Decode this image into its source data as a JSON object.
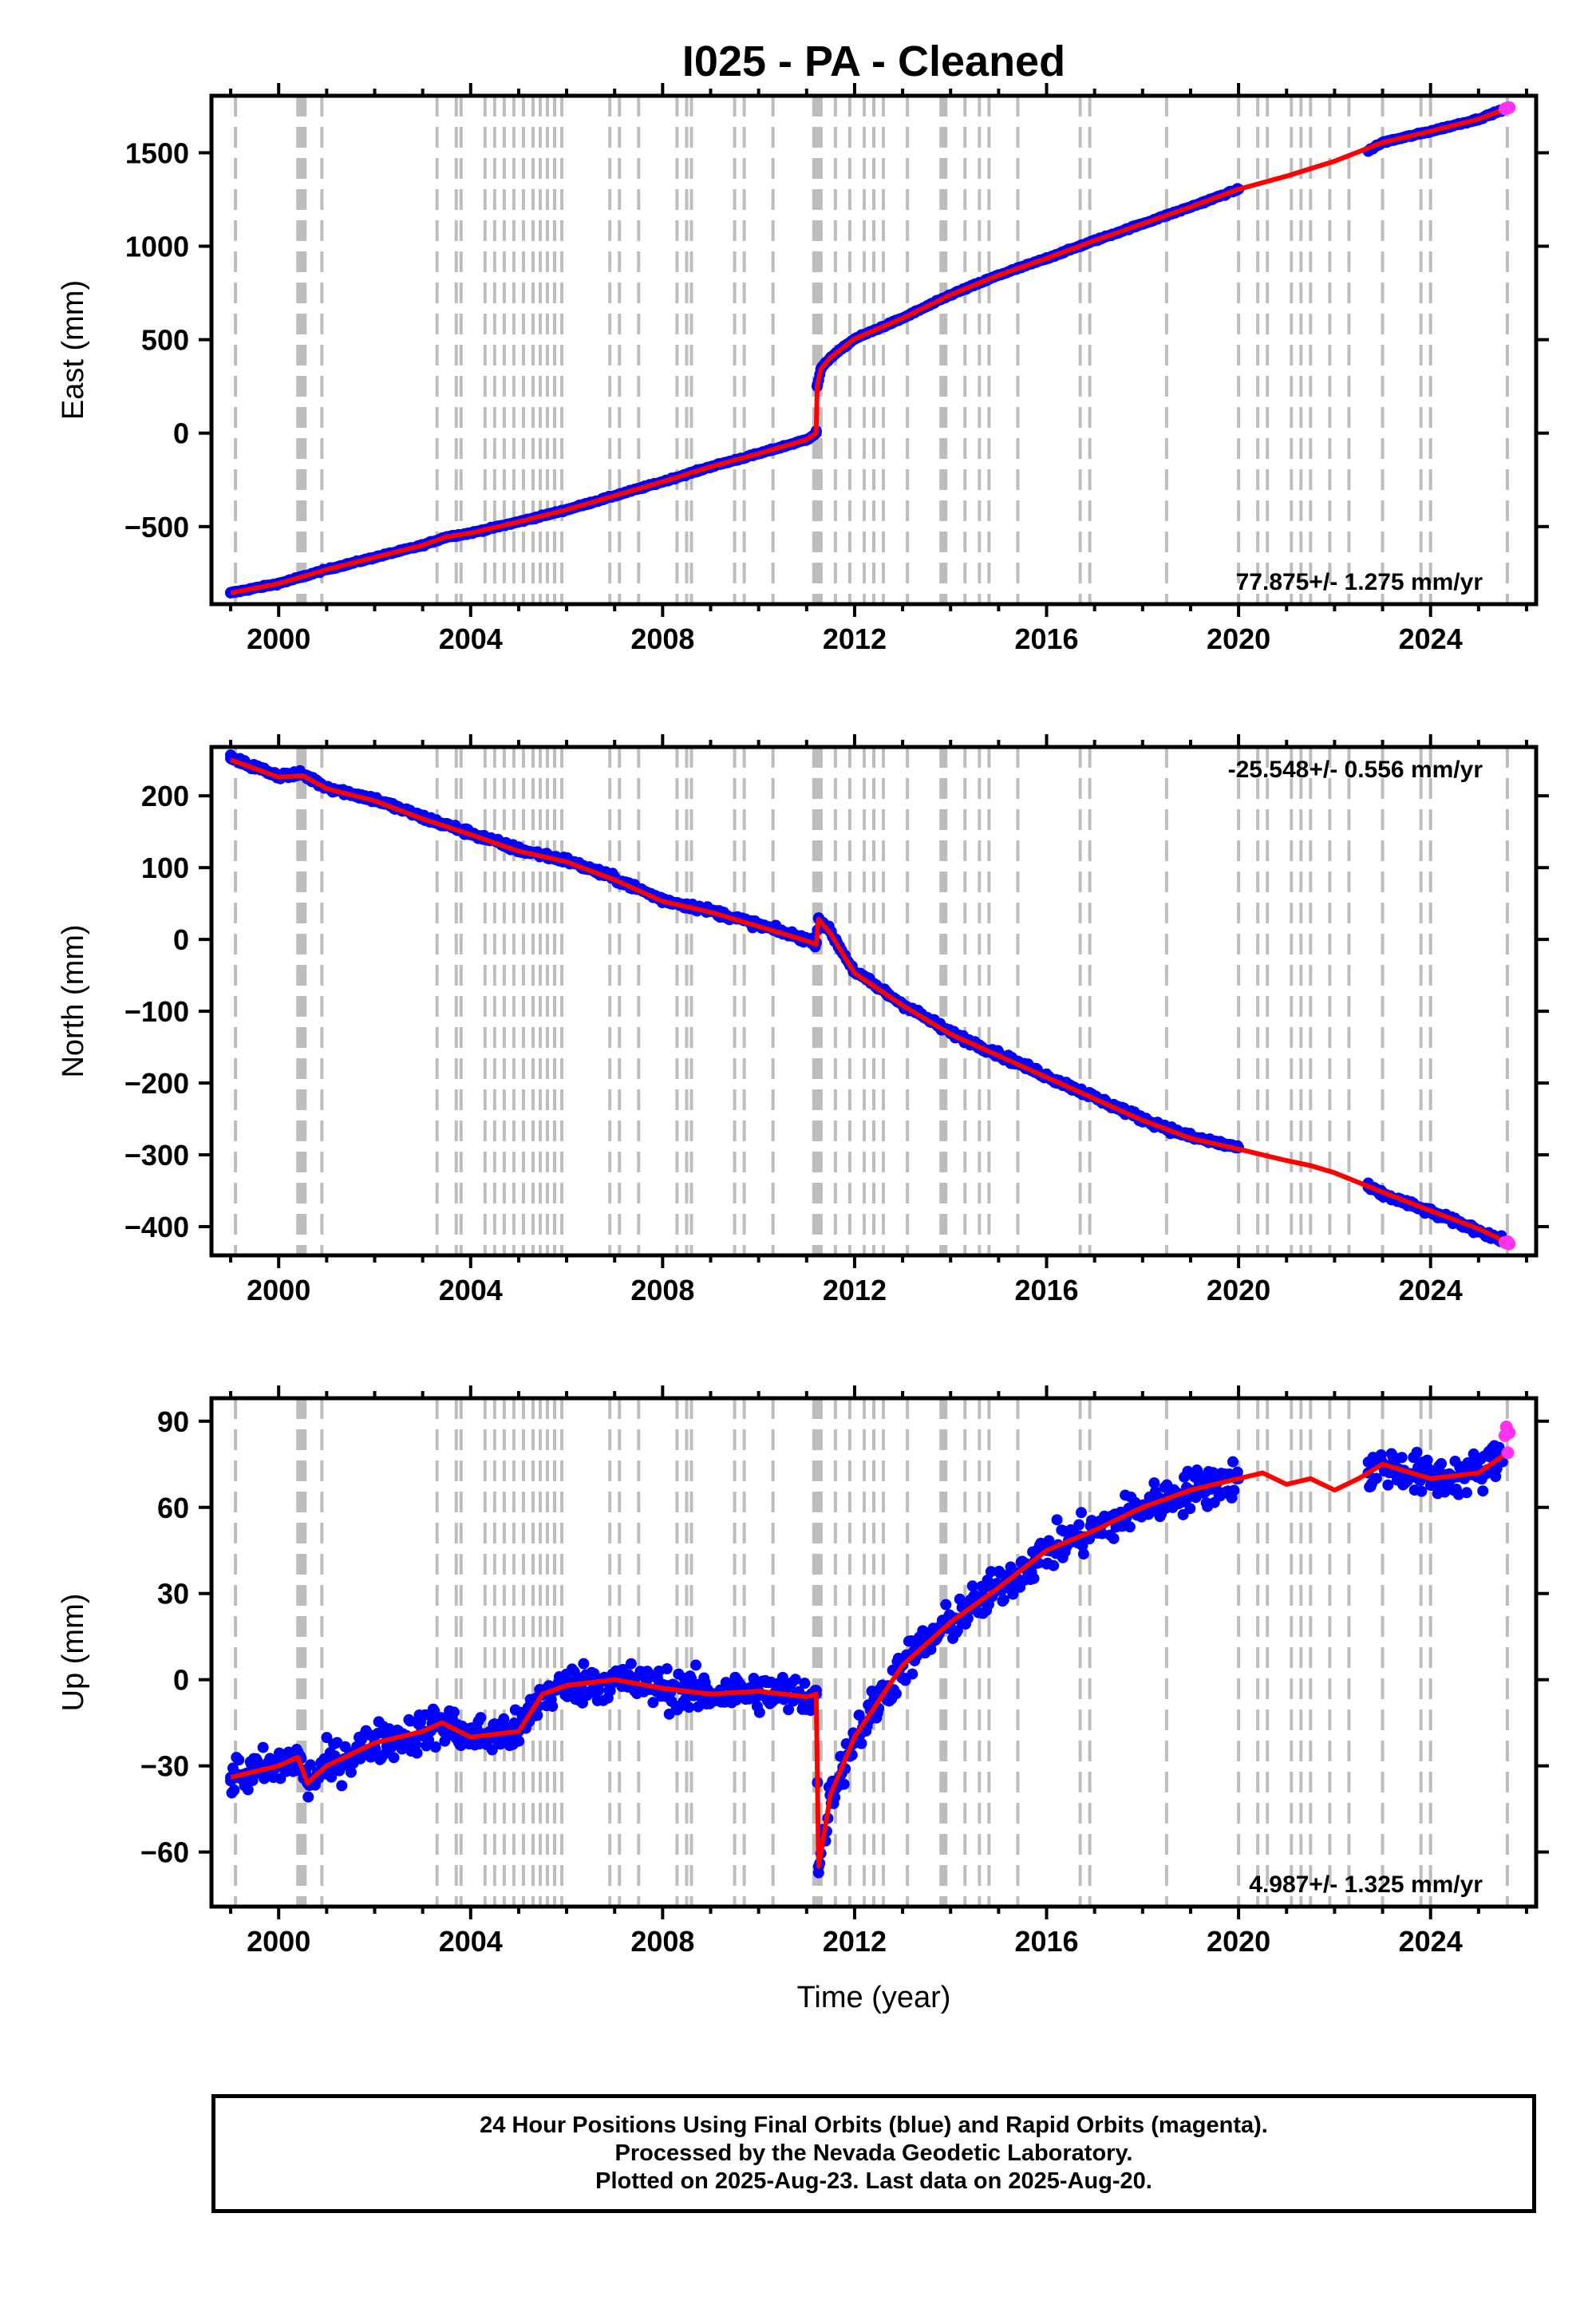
{
  "title": "I025  - PA - Cleaned",
  "colors": {
    "final_orbits": "#0000ff",
    "rapid_orbits": "#ff33ee",
    "model": "#ff0000",
    "offset_lines": "#bdbdbd",
    "axis": "#000000"
  },
  "chart_data": [
    {
      "type": "scatter",
      "panel": "east",
      "xlabel": "",
      "ylabel": "East (mm)",
      "xlim": [
        1998.6,
        2026.2
      ],
      "ylim": [
        -915,
        1805
      ],
      "xticks": [
        2000,
        2004,
        2008,
        2012,
        2016,
        2020,
        2024
      ],
      "yticks": [
        -500,
        0,
        500,
        1000,
        1500
      ],
      "ytick_labels": [
        "−500",
        "0",
        "500",
        "1000",
        "1500"
      ],
      "rate_label": "77.875+/- 1.275 mm/yr",
      "rate_label_position": "bottom-right",
      "grid": false,
      "series": [
        {
          "name": "Final Orbits",
          "color": "#0000ff",
          "x": [
            1999.0,
            2000.0,
            2001.0,
            2002.0,
            2003.0,
            2003.5,
            2004.0,
            2005.0,
            2006.0,
            2007.0,
            2008.0,
            2009.0,
            2010.0,
            2011.0,
            2011.2,
            2011.22,
            2011.3,
            2011.5,
            2012.0,
            2013.0,
            2014.0,
            2015.0,
            2016.0,
            2017.0,
            2018.0,
            2019.0,
            2020.0,
            2022.7,
            2023.0,
            2024.0,
            2025.0,
            2025.5
          ],
          "y": [
            -855,
            -805,
            -730,
            -665,
            -600,
            -555,
            -535,
            -475,
            -410,
            -335,
            -260,
            -180,
            -110,
            -35,
            0,
            250,
            345,
            405,
            505,
            615,
            740,
            845,
            935,
            1030,
            1120,
            1210,
            1305,
            1510,
            1555,
            1615,
            1680,
            1730
          ]
        },
        {
          "name": "Rapid Orbits",
          "color": "#ff33ee",
          "x": [
            2025.55,
            2025.58,
            2025.61,
            2025.64
          ],
          "y": [
            1735,
            1738,
            1740,
            1742
          ]
        },
        {
          "name": "Model",
          "color": "#ff0000",
          "x": [
            1999.0,
            2000.0,
            2001.0,
            2002.0,
            2003.0,
            2003.5,
            2004.0,
            2005.0,
            2006.0,
            2007.0,
            2008.0,
            2009.0,
            2010.0,
            2011.0,
            2011.2,
            2011.22,
            2011.3,
            2011.5,
            2012.0,
            2013.0,
            2014.0,
            2015.0,
            2016.0,
            2017.0,
            2018.0,
            2019.0,
            2020.0,
            2021.0,
            2022.0,
            2023.0,
            2024.0,
            2025.0,
            2025.6
          ],
          "y": [
            -855,
            -805,
            -730,
            -665,
            -600,
            -555,
            -535,
            -475,
            -410,
            -335,
            -260,
            -180,
            -110,
            -35,
            0,
            250,
            345,
            405,
            505,
            615,
            740,
            845,
            935,
            1030,
            1120,
            1210,
            1305,
            1375,
            1455,
            1555,
            1615,
            1680,
            1738
          ]
        }
      ]
    },
    {
      "type": "scatter",
      "panel": "north",
      "xlabel": "",
      "ylabel": "North (mm)",
      "xlim": [
        1998.6,
        2026.2
      ],
      "ylim": [
        -440,
        268
      ],
      "xticks": [
        2000,
        2004,
        2008,
        2012,
        2016,
        2020,
        2024
      ],
      "yticks": [
        -400,
        -300,
        -200,
        -100,
        0,
        100,
        200
      ],
      "ytick_labels": [
        "−400",
        "−300",
        "−200",
        "−100",
        "0",
        "100",
        "200"
      ],
      "rate_label": "-25.548+/- 0.556 mm/yr",
      "rate_label_position": "top-right",
      "grid": false,
      "series": [
        {
          "name": "Final Orbits",
          "color": "#0000ff",
          "x": [
            1999.0,
            1999.5,
            2000.0,
            2000.5,
            2001.0,
            2002.0,
            2003.0,
            2004.0,
            2005.0,
            2006.0,
            2007.0,
            2008.0,
            2009.0,
            2010.0,
            2011.0,
            2011.2,
            2011.25,
            2011.5,
            2012.0,
            2013.0,
            2014.0,
            2015.0,
            2016.0,
            2017.0,
            2018.0,
            2019.0,
            2020.0,
            2022.7,
            2023.0,
            2024.0,
            2025.0,
            2025.5
          ],
          "y": [
            252,
            240,
            228,
            230,
            212,
            195,
            170,
            148,
            125,
            110,
            85,
            55,
            40,
            20,
            0,
            -5,
            30,
            10,
            -45,
            -90,
            -130,
            -160,
            -190,
            -220,
            -250,
            -275,
            -290,
            -345,
            -355,
            -380,
            -405,
            -420
          ]
        },
        {
          "name": "Rapid Orbits",
          "color": "#ff33ee",
          "x": [
            2025.55,
            2025.58,
            2025.61,
            2025.64
          ],
          "y": [
            -422,
            -423,
            -421,
            -424
          ]
        },
        {
          "name": "Model",
          "color": "#ff0000",
          "x": [
            1999.0,
            1999.5,
            2000.0,
            2000.5,
            2001.0,
            2002.0,
            2003.0,
            2004.0,
            2005.0,
            2006.0,
            2007.0,
            2008.0,
            2009.0,
            2010.0,
            2011.0,
            2011.2,
            2011.25,
            2011.5,
            2012.0,
            2013.0,
            2014.0,
            2015.0,
            2016.0,
            2017.0,
            2018.0,
            2019.0,
            2020.0,
            2020.5,
            2021.0,
            2021.5,
            2022.0,
            2023.0,
            2024.0,
            2025.0,
            2025.6
          ],
          "y": [
            250,
            238,
            226,
            228,
            210,
            193,
            168,
            146,
            123,
            108,
            83,
            53,
            38,
            18,
            -2,
            -7,
            28,
            8,
            -47,
            -92,
            -132,
            -162,
            -192,
            -222,
            -252,
            -277,
            -292,
            -300,
            -308,
            -315,
            -325,
            -352,
            -378,
            -403,
            -422
          ]
        }
      ]
    },
    {
      "type": "scatter",
      "panel": "up",
      "xlabel": "Time (year)",
      "ylabel": "Up (mm)",
      "xlim": [
        1998.6,
        2026.2
      ],
      "ylim": [
        -79,
        98
      ],
      "xticks": [
        2000,
        2004,
        2008,
        2012,
        2016,
        2020,
        2024
      ],
      "yticks": [
        -60,
        -30,
        0,
        30,
        60,
        90
      ],
      "ytick_labels": [
        "−60",
        "−30",
        "0",
        "30",
        "60",
        "90"
      ],
      "rate_label": "4.987+/- 1.325 mm/yr",
      "rate_label_position": "bottom-right",
      "grid": false,
      "series": [
        {
          "name": "Final Orbits",
          "color": "#0000ff",
          "x": [
            1999.0,
            1999.5,
            2000.0,
            2000.4,
            2000.6,
            2001.0,
            2002.0,
            2003.0,
            2003.4,
            2004.0,
            2005.0,
            2005.5,
            2006.0,
            2007.0,
            2008.0,
            2009.0,
            2010.0,
            2011.0,
            2011.2,
            2011.25,
            2011.5,
            2012.0,
            2013.0,
            2014.0,
            2015.0,
            2016.0,
            2017.0,
            2018.0,
            2019.0,
            2020.0,
            2022.7,
            2023.0,
            2024.0,
            2025.0,
            2025.5
          ],
          "y": [
            -34,
            -32,
            -30,
            -27,
            -36,
            -30,
            -22,
            -18,
            -15,
            -20,
            -18,
            -5,
            -2,
            0,
            -3,
            -5,
            -4,
            -6,
            -5,
            -65,
            -40,
            -20,
            5,
            20,
            32,
            45,
            52,
            60,
            66,
            70,
            72,
            75,
            70,
            72,
            78
          ]
        },
        {
          "name": "Rapid Orbits",
          "color": "#ff33ee",
          "x": [
            2025.55,
            2025.58,
            2025.61,
            2025.64
          ],
          "y": [
            85,
            88,
            79,
            86
          ]
        },
        {
          "name": "Model",
          "color": "#ff0000",
          "x": [
            1999.0,
            1999.5,
            2000.0,
            2000.4,
            2000.6,
            2001.0,
            2002.0,
            2003.0,
            2003.4,
            2004.0,
            2005.0,
            2005.5,
            2006.0,
            2007.0,
            2008.0,
            2009.0,
            2010.0,
            2011.0,
            2011.2,
            2011.25,
            2011.5,
            2012.0,
            2013.0,
            2014.0,
            2015.0,
            2016.0,
            2017.0,
            2018.0,
            2019.0,
            2020.0,
            2020.5,
            2021.0,
            2021.5,
            2022.0,
            2022.5,
            2023.0,
            2024.0,
            2025.0,
            2025.6
          ],
          "y": [
            -34,
            -32,
            -30,
            -27,
            -36,
            -30,
            -22,
            -18,
            -15,
            -20,
            -18,
            -5,
            -2,
            0,
            -3,
            -5,
            -4,
            -6,
            -5,
            -65,
            -40,
            -20,
            5,
            20,
            32,
            45,
            52,
            60,
            66,
            70,
            72,
            68,
            70,
            66,
            70,
            75,
            70,
            72,
            79
          ]
        }
      ]
    }
  ],
  "offset_lines_x": [
    1999.1,
    2000.4,
    2000.45,
    2000.5,
    2000.55,
    2000.9,
    2003.3,
    2003.7,
    2003.8,
    2004.3,
    2004.5,
    2004.7,
    2004.9,
    2005.1,
    2005.3,
    2005.45,
    2005.6,
    2005.75,
    2005.9,
    2006.9,
    2007.1,
    2007.5,
    2008.3,
    2008.5,
    2008.6,
    2009.5,
    2009.7,
    2010.3,
    2011.15,
    2011.2,
    2011.25,
    2011.3,
    2011.6,
    2011.9,
    2012.2,
    2012.4,
    2012.6,
    2013.1,
    2013.8,
    2013.85,
    2013.9,
    2014.3,
    2014.6,
    2014.8,
    2015.4,
    2016.7,
    2016.9,
    2018.5,
    2020.0,
    2020.4,
    2020.6,
    2021.1,
    2021.3,
    2021.5,
    2021.9,
    2022.3,
    2023.0,
    2023.8,
    2024.0,
    2025.6
  ],
  "footer": {
    "line1": "24 Hour Positions Using Final Orbits (blue) and Rapid Orbits (magenta).",
    "line2": "Processed by the Nevada Geodetic Laboratory.",
    "line3": "Plotted on 2025-Aug-23. Last data on 2025-Aug-20."
  }
}
